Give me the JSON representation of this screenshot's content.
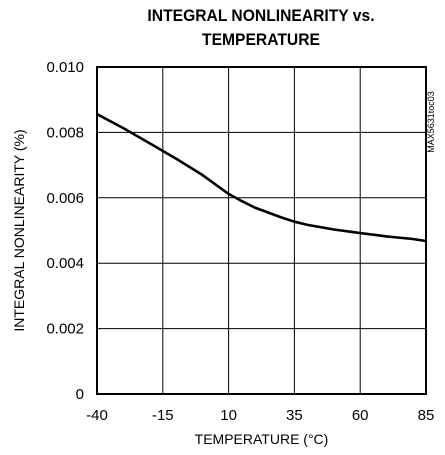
{
  "chart_data": {
    "type": "line",
    "title_line1": "INTEGRAL NONLINEARITY vs.",
    "title_line2": "TEMPERATURE",
    "xlabel": "TEMPERATURE (°C)",
    "ylabel": "INTEGRAL NONLINEARITY (%)",
    "xlim": [
      -40,
      85
    ],
    "ylim": [
      0,
      0.01
    ],
    "x_ticks": [
      -40,
      -15,
      10,
      35,
      60,
      85
    ],
    "x_tick_labels": [
      "-40",
      "-15",
      "10",
      "35",
      "60",
      "85"
    ],
    "y_ticks": [
      0,
      0.002,
      0.004,
      0.006,
      0.008,
      0.01
    ],
    "y_tick_labels": [
      "0",
      "0.002",
      "0.004",
      "0.006",
      "0.008",
      "0.010"
    ],
    "grid": true,
    "series": [
      {
        "x": [
          -40,
          -30,
          -20,
          -10,
          0,
          10,
          15,
          20,
          25,
          30,
          35,
          40,
          50,
          60,
          70,
          80,
          85
        ],
        "y": [
          0.00856,
          0.00813,
          0.00767,
          0.0072,
          0.0067,
          0.00612,
          0.0059,
          0.0057,
          0.00555,
          0.0054,
          0.00527,
          0.00517,
          0.00503,
          0.00492,
          0.00482,
          0.00474,
          0.00468
        ]
      }
    ],
    "side_code": "MAX5631toc03"
  }
}
